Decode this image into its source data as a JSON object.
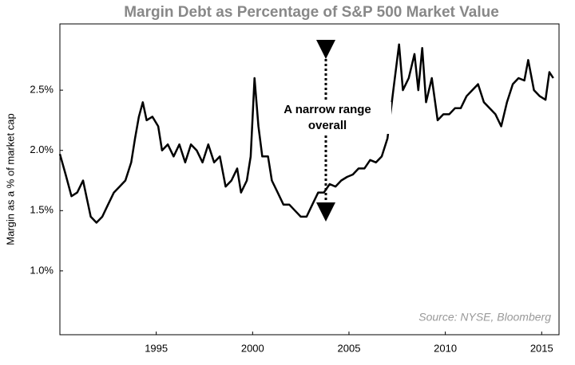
{
  "chart_data": {
    "type": "line",
    "title": "Margin Debt as Percentage of S&P 500 Market Value",
    "y_label": "Margin as a % of market cap",
    "annotation": "A narrow range overall",
    "source": "Source: NYSE, Bloomberg",
    "color": "#000000",
    "x": [
      1990.0,
      1990.3,
      1990.6,
      1990.9,
      1991.2,
      1991.4,
      1991.6,
      1991.9,
      1992.2,
      1992.5,
      1992.8,
      1993.1,
      1993.4,
      1993.7,
      1993.9,
      1994.1,
      1994.3,
      1994.5,
      1994.8,
      1995.1,
      1995.3,
      1995.6,
      1995.9,
      1996.2,
      1996.5,
      1996.8,
      1997.1,
      1997.4,
      1997.7,
      1998.0,
      1998.3,
      1998.6,
      1998.9,
      1999.2,
      1999.4,
      1999.7,
      1999.9,
      2000.1,
      2000.3,
      2000.5,
      2000.8,
      2001.0,
      2001.3,
      2001.6,
      2001.9,
      2002.2,
      2002.5,
      2002.8,
      2003.1,
      2003.4,
      2003.7,
      2004.0,
      2004.3,
      2004.6,
      2004.9,
      2005.2,
      2005.5,
      2005.8,
      2006.1,
      2006.4,
      2006.7,
      2007.0,
      2007.3,
      2007.6,
      2007.8,
      2008.1,
      2008.4,
      2008.6,
      2008.8,
      2009.0,
      2009.3,
      2009.6,
      2009.9,
      2010.2,
      2010.5,
      2010.8,
      2011.1,
      2011.4,
      2011.7,
      2012.0,
      2012.3,
      2012.6,
      2012.9,
      2013.2,
      2013.5,
      2013.8,
      2014.1,
      2014.3,
      2014.6,
      2014.9,
      2015.2,
      2015.4,
      2015.6
    ],
    "values": [
      1.97,
      1.8,
      1.62,
      1.65,
      1.75,
      1.6,
      1.45,
      1.4,
      1.45,
      1.55,
      1.65,
      1.7,
      1.75,
      1.9,
      2.1,
      2.28,
      2.4,
      2.25,
      2.28,
      2.2,
      2.0,
      2.05,
      1.95,
      2.05,
      1.9,
      2.05,
      2.0,
      1.9,
      2.05,
      1.9,
      1.95,
      1.7,
      1.75,
      1.85,
      1.65,
      1.75,
      1.95,
      2.6,
      2.2,
      1.95,
      1.95,
      1.75,
      1.65,
      1.55,
      1.55,
      1.5,
      1.45,
      1.45,
      1.55,
      1.65,
      1.65,
      1.72,
      1.7,
      1.75,
      1.78,
      1.8,
      1.85,
      1.85,
      1.92,
      1.9,
      1.95,
      2.1,
      2.5,
      2.88,
      2.5,
      2.6,
      2.8,
      2.5,
      2.85,
      2.4,
      2.6,
      2.25,
      2.3,
      2.3,
      2.35,
      2.35,
      2.45,
      2.5,
      2.55,
      2.4,
      2.35,
      2.3,
      2.2,
      2.4,
      2.55,
      2.6,
      2.58,
      2.75,
      2.5,
      2.45,
      2.42,
      2.65,
      2.6
    ],
    "xlim": [
      1990,
      2015.9
    ],
    "xticks": [
      1995,
      2000,
      2005,
      2010,
      2015
    ],
    "ylim": [
      0.47,
      3.05
    ],
    "yticks": [
      {
        "value": 1.0,
        "label": "1.0%"
      },
      {
        "value": 1.5,
        "label": "1.5%"
      },
      {
        "value": 2.0,
        "label": "2.0%"
      },
      {
        "value": 2.5,
        "label": "2.5%"
      }
    ]
  }
}
